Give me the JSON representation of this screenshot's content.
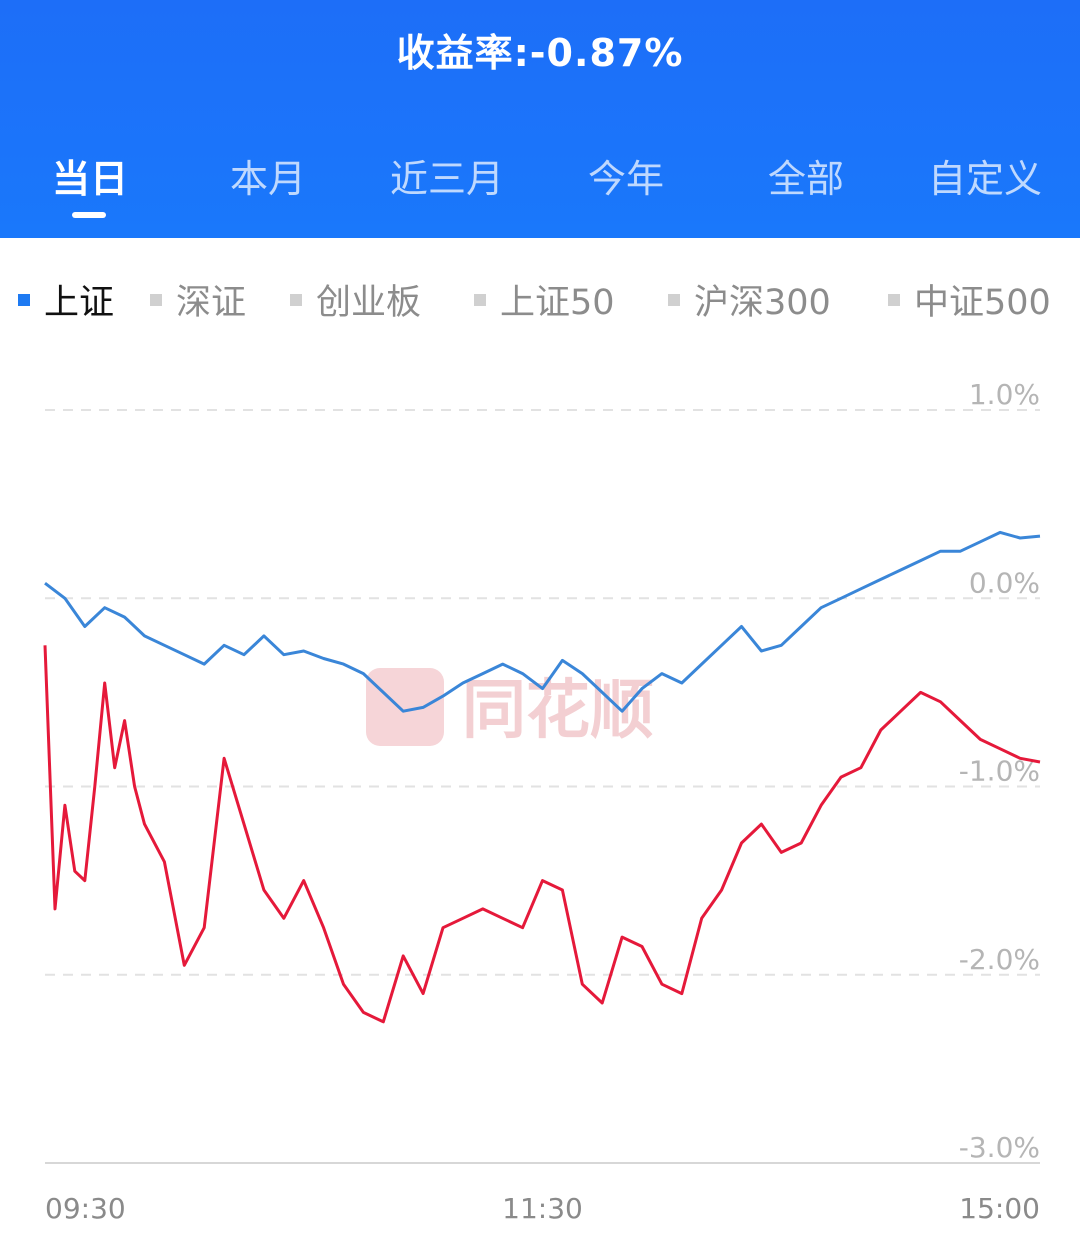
{
  "header": {
    "yield_label": "收益率:-0.87%",
    "tabs": [
      {
        "label": "当日",
        "active": true
      },
      {
        "label": "本月",
        "active": false
      },
      {
        "label": "近三月",
        "active": false
      },
      {
        "label": "今年",
        "active": false
      },
      {
        "label": "全部",
        "active": false
      },
      {
        "label": "自定义",
        "active": false
      }
    ]
  },
  "indices": [
    {
      "label": "上证",
      "active": true
    },
    {
      "label": "深证",
      "active": false
    },
    {
      "label": "创业板",
      "active": false
    },
    {
      "label": "上证50",
      "active": false
    },
    {
      "label": "沪深300",
      "active": false
    },
    {
      "label": "中证500",
      "active": false
    }
  ],
  "watermark": "同花顺",
  "colors": {
    "header": "#1a73f9",
    "benchmark": "#3a86d8",
    "portfolio": "#e5193a"
  },
  "chart_data": {
    "type": "line",
    "x_ticks": [
      "09:30",
      "11:30",
      "15:00"
    ],
    "y_ticks": [
      "1.0%",
      "0.0%",
      "-1.0%",
      "-2.0%",
      "-3.0%"
    ],
    "ylim": [
      -3.0,
      1.0
    ],
    "grid": true,
    "series": [
      {
        "name": "上证",
        "color": "#3a86d8",
        "x": [
          0,
          2,
          4,
          6,
          8,
          10,
          12,
          14,
          16,
          18,
          20,
          22,
          24,
          26,
          28,
          30,
          32,
          34,
          36,
          38,
          40,
          42,
          44,
          46,
          48,
          50,
          52,
          54,
          56,
          58,
          60,
          62,
          64,
          66,
          68,
          70,
          72,
          74,
          76,
          78,
          80,
          82,
          84,
          86,
          88,
          90,
          92,
          94,
          96,
          98,
          100
        ],
        "values": [
          0.08,
          0.0,
          -0.15,
          -0.05,
          -0.1,
          -0.2,
          -0.25,
          -0.3,
          -0.35,
          -0.25,
          -0.3,
          -0.2,
          -0.3,
          -0.28,
          -0.32,
          -0.35,
          -0.4,
          -0.5,
          -0.6,
          -0.58,
          -0.52,
          -0.45,
          -0.4,
          -0.35,
          -0.4,
          -0.48,
          -0.33,
          -0.4,
          -0.5,
          -0.6,
          -0.48,
          -0.4,
          -0.45,
          -0.35,
          -0.25,
          -0.15,
          -0.28,
          -0.25,
          -0.15,
          -0.05,
          0.0,
          0.05,
          0.1,
          0.15,
          0.2,
          0.25,
          0.25,
          0.3,
          0.35,
          0.32,
          0.33
        ]
      },
      {
        "name": "收益率",
        "color": "#e5193a",
        "x": [
          0,
          1,
          2,
          3,
          4,
          5,
          6,
          7,
          8,
          9,
          10,
          12,
          14,
          16,
          18,
          20,
          22,
          24,
          26,
          28,
          30,
          32,
          34,
          36,
          38,
          40,
          42,
          44,
          46,
          48,
          50,
          52,
          54,
          56,
          58,
          60,
          62,
          64,
          66,
          68,
          70,
          72,
          74,
          76,
          78,
          80,
          82,
          84,
          86,
          88,
          90,
          92,
          94,
          96,
          98,
          100
        ],
        "values": [
          -0.25,
          -1.65,
          -1.1,
          -1.45,
          -1.5,
          -1.0,
          -0.45,
          -0.9,
          -0.65,
          -1.0,
          -1.2,
          -1.4,
          -1.95,
          -1.75,
          -0.85,
          -1.2,
          -1.55,
          -1.7,
          -1.5,
          -1.75,
          -2.05,
          -2.2,
          -2.25,
          -1.9,
          -2.1,
          -1.75,
          -1.7,
          -1.65,
          -1.7,
          -1.75,
          -1.5,
          -1.55,
          -2.05,
          -2.15,
          -1.8,
          -1.85,
          -2.05,
          -2.1,
          -1.7,
          -1.55,
          -1.3,
          -1.2,
          -1.35,
          -1.3,
          -1.1,
          -0.95,
          -0.9,
          -0.7,
          -0.6,
          -0.5,
          -0.55,
          -0.65,
          -0.75,
          -0.8,
          -0.85,
          -0.87
        ]
      }
    ]
  }
}
